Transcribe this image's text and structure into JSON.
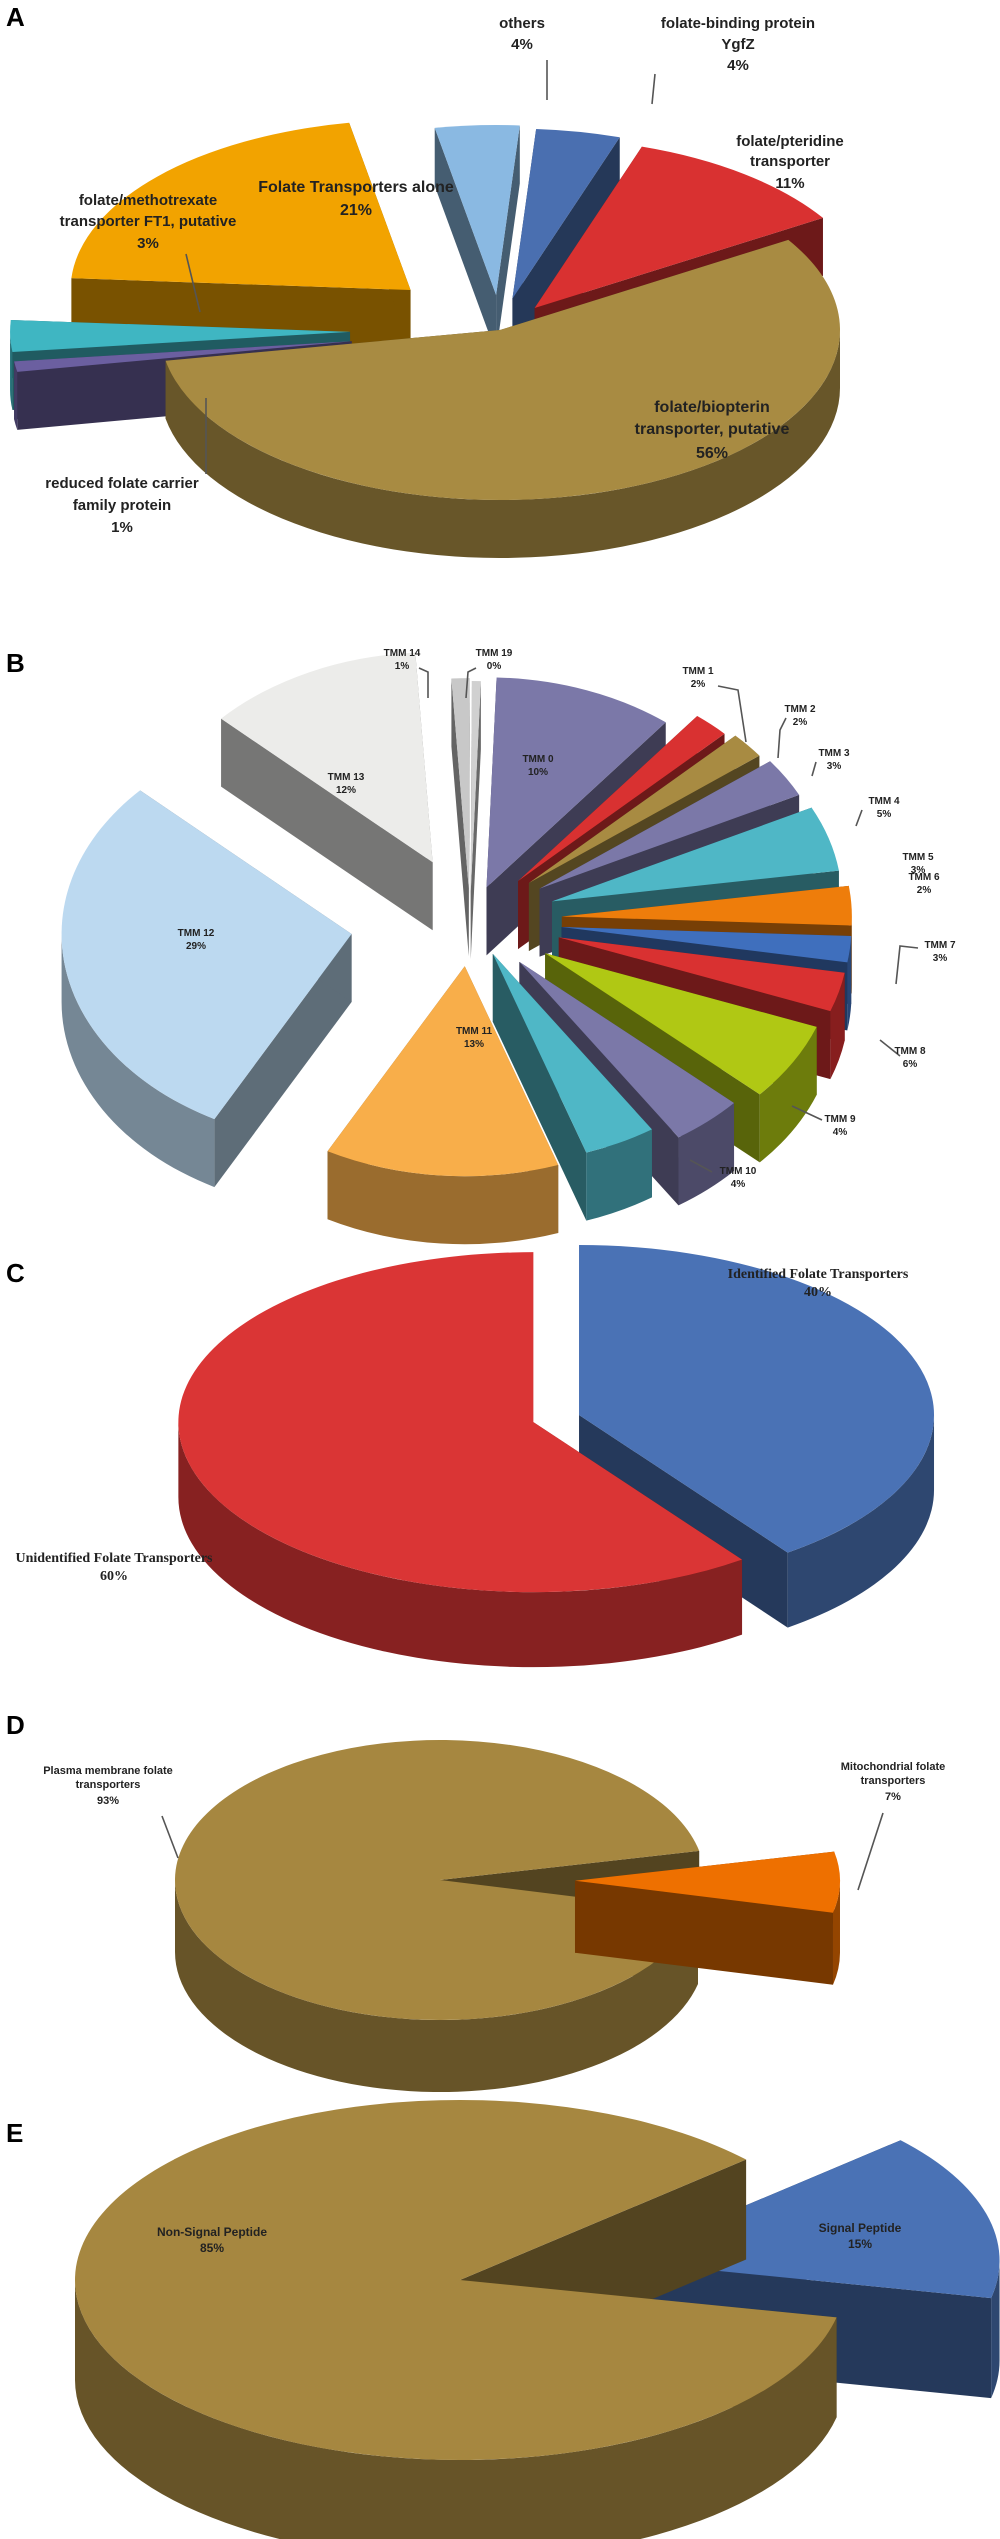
{
  "chart_data": [
    {
      "panel": "A",
      "type": "pie",
      "slices": [
        {
          "label": "folate-binding protein YgfZ",
          "percent": "4%",
          "value": 4,
          "color": "#4a6fb0"
        },
        {
          "label": "folate/pteridine transporter",
          "percent": "11%",
          "value": 11,
          "color": "#d93131"
        },
        {
          "label": "folate/biopterin transporter, putative",
          "percent": "56%",
          "value": 56,
          "color": "#a88b42"
        },
        {
          "label": "reduced folate carrier family protein",
          "percent": "1%",
          "value": 1,
          "color": "#6b5fa0"
        },
        {
          "label": "folate/methotrexate transporter FT1, putative",
          "percent": "3%",
          "value": 3,
          "color": "#3fb6c2"
        },
        {
          "label": "Folate Transporters alone",
          "percent": "21%",
          "value": 21,
          "color": "#f2a300"
        },
        {
          "label": "others",
          "percent": "4%",
          "value": 4,
          "color": "#8ab9e2"
        }
      ]
    },
    {
      "panel": "B",
      "type": "pie",
      "slices": [
        {
          "label": "TMM 0",
          "percent": "10%",
          "value": 10,
          "color": "#7b78a8"
        },
        {
          "label": "TMM 1",
          "percent": "2%",
          "value": 2,
          "color": "#d93131"
        },
        {
          "label": "TMM 2",
          "percent": "2%",
          "value": 2,
          "color": "#a88b42"
        },
        {
          "label": "TMM 3",
          "percent": "3%",
          "value": 3,
          "color": "#7b78a8"
        },
        {
          "label": "TMM 4",
          "percent": "5%",
          "value": 5,
          "color": "#4fb7c6"
        },
        {
          "label": "TMM 5",
          "percent": "3%",
          "value": 3,
          "color": "#ee7d0b"
        },
        {
          "label": "TMM 6",
          "percent": "2%",
          "value": 2,
          "color": "#3f6fbd"
        },
        {
          "label": "TMM 7",
          "percent": "3%",
          "value": 3,
          "color": "#d93131"
        },
        {
          "label": "TMM 8",
          "percent": "6%",
          "value": 6,
          "color": "#b0c814"
        },
        {
          "label": "TMM 9",
          "percent": "4%",
          "value": 4,
          "color": "#7b78a8"
        },
        {
          "label": "TMM 10",
          "percent": "4%",
          "value": 4,
          "color": "#4fb7c6"
        },
        {
          "label": "TMM 11",
          "percent": "13%",
          "value": 13,
          "color": "#f8ae4a"
        },
        {
          "label": "TMM 12",
          "percent": "29%",
          "value": 29,
          "color": "#bcd9f0"
        },
        {
          "label": "TMM 13",
          "percent": "12%",
          "value": 12,
          "color": "#ececea"
        },
        {
          "label": "TMM 14",
          "percent": "1%",
          "value": 1,
          "color": "#c8c8c8"
        },
        {
          "label": "TMM 19",
          "percent": "0%",
          "value": 0.5,
          "color": "#d0d0d0"
        }
      ]
    },
    {
      "panel": "C",
      "type": "pie",
      "slices": [
        {
          "label": "Identified Folate Transporters",
          "percent": "40%",
          "value": 40,
          "color": "#4a72b5"
        },
        {
          "label": "Unidentified Folate Transporters",
          "percent": "60%",
          "value": 60,
          "color": "#da3535"
        }
      ]
    },
    {
      "panel": "D",
      "type": "pie",
      "slices": [
        {
          "label": "Mitochondrial folate transporters",
          "percent": "7%",
          "value": 7,
          "color": "#ee7000"
        },
        {
          "label": "Plasma membrane folate transporters",
          "percent": "93%",
          "value": 93,
          "color": "#a68740"
        }
      ]
    },
    {
      "panel": "E",
      "type": "pie",
      "slices": [
        {
          "label": "Signal Peptide",
          "percent": "15%",
          "value": 15,
          "color": "#4a72b5"
        },
        {
          "label": "Non-Signal Peptide",
          "percent": "85%",
          "value": 85,
          "color": "#a68740"
        }
      ]
    }
  ],
  "labels": {
    "A": [
      {
        "lines": [
          "others",
          "4%"
        ]
      },
      {
        "lines": [
          "folate-binding protein",
          "YgfZ",
          "4%"
        ]
      },
      {
        "lines": [
          "folate/pteridine",
          "transporter",
          "11%"
        ]
      },
      {
        "lines": [
          "folate/biopterin",
          "transporter, putative",
          "56%"
        ]
      },
      {
        "lines": [
          "reduced folate carrier",
          "family protein",
          "1%"
        ]
      },
      {
        "lines": [
          "folate/methotrexate",
          "transporter FT1, putative",
          "3%"
        ]
      },
      {
        "lines": [
          "Folate Transporters alone",
          "21%"
        ]
      }
    ],
    "B": [
      {
        "lines": [
          "TMM 14",
          "1%"
        ]
      },
      {
        "lines": [
          "TMM 19",
          "0%"
        ]
      },
      {
        "lines": [
          "TMM 1",
          "2%"
        ]
      },
      {
        "lines": [
          "TMM 2",
          "2%"
        ]
      },
      {
        "lines": [
          "TMM 3",
          "3%"
        ]
      },
      {
        "lines": [
          "TMM 4",
          "5%"
        ]
      },
      {
        "lines": [
          "TMM 5",
          "3%"
        ]
      },
      {
        "lines": [
          "TMM 6",
          "2%"
        ]
      },
      {
        "lines": [
          "TMM 7",
          "3%"
        ]
      },
      {
        "lines": [
          "TMM 8",
          "6%"
        ]
      },
      {
        "lines": [
          "TMM 9",
          "4%"
        ]
      },
      {
        "lines": [
          "TMM 10",
          "4%"
        ]
      },
      {
        "lines": [
          "TMM 0",
          "10%"
        ]
      },
      {
        "lines": [
          "TMM 11",
          "13%"
        ]
      },
      {
        "lines": [
          "TMM 12",
          "29%"
        ]
      },
      {
        "lines": [
          "TMM 13",
          "12%"
        ]
      }
    ],
    "C": [
      {
        "lines": [
          "Identified Folate Transporters",
          "40%"
        ]
      },
      {
        "lines": [
          "Unidentified Folate Transporters",
          "60%"
        ]
      }
    ],
    "D": [
      {
        "lines": [
          "Plasma membrane folate",
          "transporters",
          "93%"
        ]
      },
      {
        "lines": [
          "Mitochondrial folate",
          "transporters",
          "7%"
        ]
      }
    ],
    "E": [
      {
        "lines": [
          "Non-Signal Peptide",
          "85%"
        ]
      },
      {
        "lines": [
          "Signal Peptide",
          "15%"
        ]
      }
    ]
  }
}
